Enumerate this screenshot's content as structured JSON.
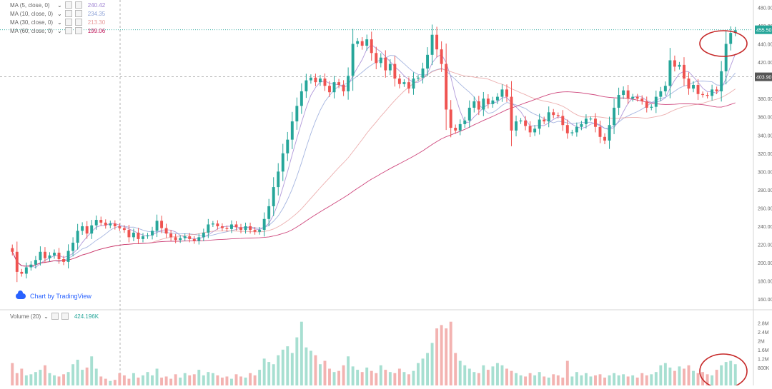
{
  "chart_data": {
    "type": "candlestick",
    "price_axis": {
      "ticks": [
        "460.00",
        "440.00",
        "420.00",
        "380.00",
        "360.00",
        "340.00",
        "320.00",
        "300.00",
        "280.00",
        "260.00",
        "240.00",
        "220.00",
        "200.00",
        "180.00",
        "160.00"
      ],
      "tick_values": [
        460,
        440,
        420,
        380,
        360,
        340,
        320,
        300,
        280,
        260,
        240,
        220,
        200,
        180,
        160
      ],
      "top_partial_label": "480.00",
      "ylim": [
        150,
        485
      ]
    },
    "markers": [
      {
        "label": "455.50",
        "value": 455.5,
        "color": "#26a69a"
      },
      {
        "label": "403.90",
        "value": 403.9,
        "color": "#555555"
      }
    ],
    "indicators": [
      {
        "name": "MA (5, close, 0)",
        "value": "240.42",
        "color": "#9c7fd1"
      },
      {
        "name": "MA (10, close, 0)",
        "value": "234.35",
        "color": "#8fa3d8"
      },
      {
        "name": "MA (30, close, 0)",
        "value": "213.30",
        "color": "#e79a9a"
      },
      {
        "name": "MA (60, close, 0)",
        "value": "199.06",
        "color": "#c2185b"
      }
    ],
    "volume": {
      "name": "Volume (20)",
      "value": "424.196K",
      "ticks": [
        "2.8M",
        "2.4M",
        "2M",
        "1.6M",
        "1.2M",
        "800K"
      ],
      "tick_values": [
        2.8,
        2.4,
        2.0,
        1.6,
        1.2,
        0.8
      ]
    },
    "closes": [
      212,
      190,
      188,
      195,
      198,
      203,
      212,
      205,
      208,
      211,
      204,
      201,
      213,
      222,
      235,
      240,
      232,
      241,
      247,
      244,
      241,
      243,
      240,
      238,
      236,
      228,
      233,
      226,
      229,
      230,
      235,
      246,
      238,
      232,
      228,
      225,
      227,
      229,
      226,
      224,
      228,
      233,
      242,
      243,
      240,
      238,
      237,
      242,
      239,
      236,
      240,
      236,
      234,
      236,
      248,
      262,
      283,
      300,
      320,
      335,
      355,
      372,
      388,
      400,
      403,
      398,
      402,
      394,
      387,
      398,
      395,
      388,
      405,
      440,
      443,
      438,
      445,
      430,
      419,
      425,
      411,
      418,
      402,
      396,
      398,
      391,
      402,
      403,
      413,
      428,
      450,
      434,
      418,
      368,
      348,
      345,
      352,
      356,
      370,
      377,
      368,
      380,
      374,
      378,
      382,
      390,
      382,
      345,
      355,
      356,
      350,
      343,
      347,
      357,
      355,
      365,
      362,
      361,
      351,
      342,
      343,
      349,
      352,
      358,
      358,
      349,
      338,
      334,
      351,
      370,
      384,
      389,
      380,
      382,
      380,
      377,
      370,
      371,
      382,
      388,
      394,
      422,
      415,
      417,
      402,
      391,
      395,
      385,
      384,
      383,
      390,
      388,
      410,
      440,
      452,
      455
    ],
    "volumes": [
      1.0,
      0.55,
      0.75,
      0.45,
      0.5,
      0.6,
      0.7,
      0.9,
      0.55,
      0.45,
      0.4,
      0.5,
      0.6,
      0.95,
      1.15,
      0.7,
      0.8,
      1.3,
      0.75,
      0.4,
      0.3,
      0.2,
      0.25,
      0.55,
      0.45,
      0.3,
      0.55,
      0.35,
      0.45,
      0.6,
      0.45,
      0.75,
      0.35,
      0.4,
      0.3,
      0.5,
      0.35,
      0.55,
      0.45,
      0.5,
      0.7,
      0.45,
      0.6,
      0.55,
      0.45,
      0.35,
      0.4,
      0.3,
      0.5,
      0.4,
      0.35,
      0.55,
      0.45,
      0.7,
      1.2,
      1.05,
      0.95,
      1.35,
      1.6,
      1.75,
      1.45,
      2.15,
      2.85,
      1.7,
      1.55,
      1.35,
      0.95,
      1.1,
      0.75,
      0.6,
      0.65,
      0.9,
      1.3,
      0.85,
      0.7,
      0.6,
      0.8,
      0.65,
      0.55,
      0.9,
      0.7,
      0.6,
      0.55,
      0.75,
      0.6,
      0.5,
      0.65,
      1.0,
      1.2,
      1.45,
      1.9,
      2.55,
      2.7,
      2.55,
      2.85,
      1.45,
      1.1,
      0.9,
      0.75,
      0.6,
      0.55,
      0.9,
      0.7,
      0.85,
      1.0,
      0.9,
      0.75,
      0.65,
      0.55,
      0.45,
      0.4,
      0.55,
      0.45,
      0.6,
      0.4,
      0.35,
      0.5,
      0.45,
      0.35,
      1.1,
      0.4,
      0.6,
      0.45,
      0.55,
      0.4,
      0.45,
      0.5,
      0.35,
      0.45,
      0.55,
      0.45,
      0.5,
      0.4,
      0.45,
      0.35,
      0.55,
      0.45,
      0.5,
      0.6,
      0.9,
      1.0,
      0.8,
      0.65,
      0.85,
      0.75,
      0.9,
      0.65,
      0.55,
      0.6,
      0.5,
      0.45,
      0.7,
      0.9,
      1.05,
      1.1,
      0.95
    ]
  },
  "branding": {
    "text": "Chart by TradingView"
  },
  "colors": {
    "up": "#26a69a",
    "down": "#ef5350",
    "up_vol": "#a7dfd1",
    "down_vol": "#f3b3b1",
    "annotation": "#c62828"
  }
}
